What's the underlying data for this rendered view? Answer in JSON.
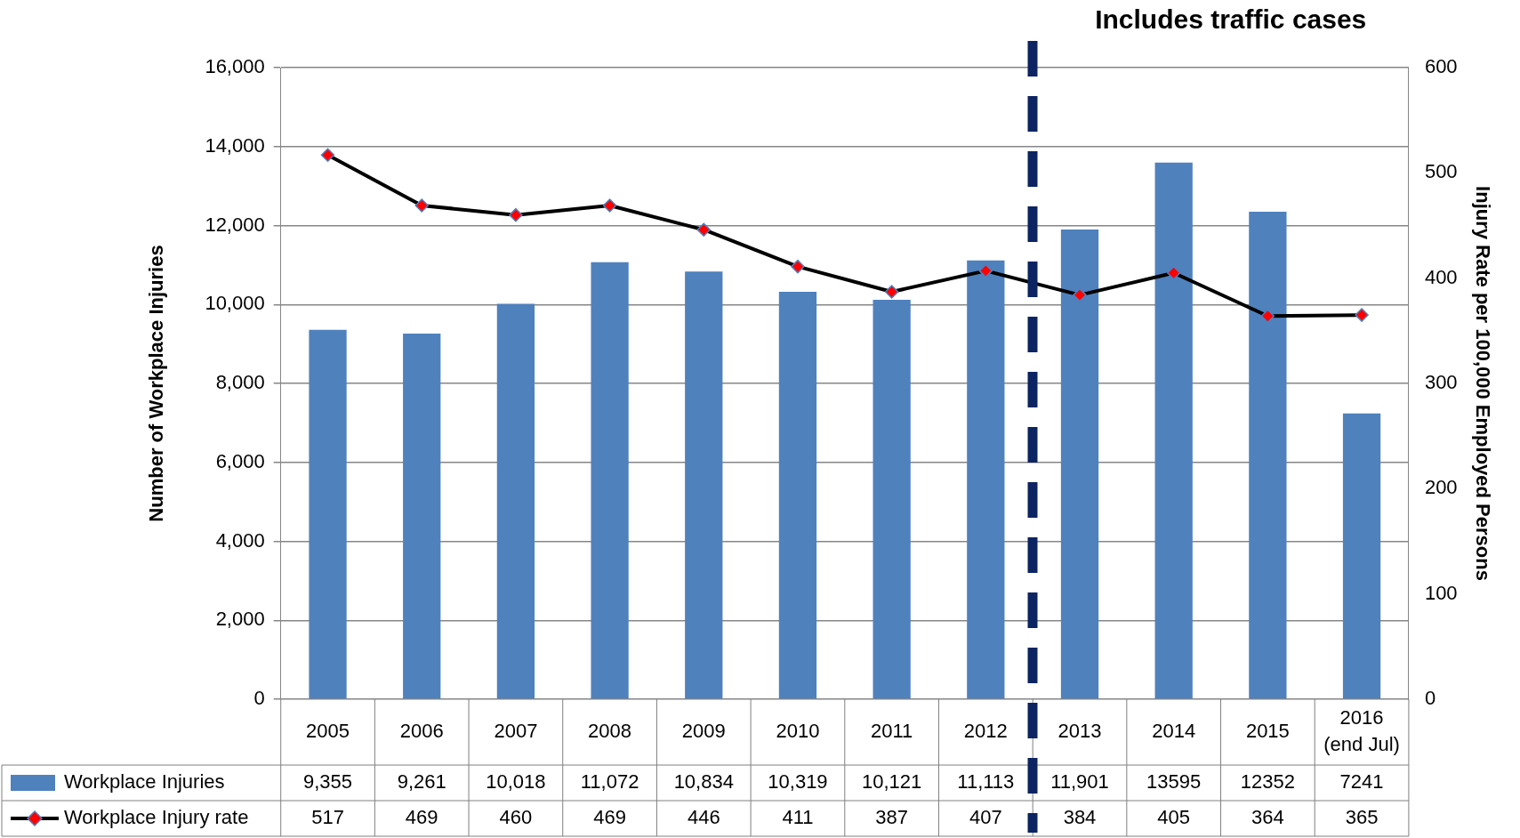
{
  "chart_data": {
    "type": "bar",
    "categories": [
      "2005",
      "2006",
      "2007",
      "2008",
      "2009",
      "2010",
      "2011",
      "2012",
      "2013",
      "2014",
      "2015",
      "2016 (end Jul)"
    ],
    "series": [
      {
        "name": "Workplace Injuries",
        "color": "#4f81bd",
        "values": [
          9355,
          9261,
          10018,
          11072,
          10834,
          10319,
          10121,
          11113,
          11901,
          13595,
          12352,
          7241
        ],
        "value_labels": [
          "9,355",
          "9,261",
          "10,018",
          "11,072",
          "10,834",
          "10,319",
          "10,121",
          "11,113",
          "11,901",
          "13595",
          "12352",
          "7241"
        ]
      },
      {
        "name": "Workplace Injury rate",
        "type": "line",
        "axis": "y2",
        "color": "#000000",
        "marker": "diamond",
        "values": [
          517,
          469,
          460,
          469,
          446,
          411,
          387,
          407,
          384,
          405,
          364,
          365
        ],
        "value_labels": [
          "517",
          "469",
          "460",
          "469",
          "446",
          "411",
          "387",
          "407",
          "384",
          "405",
          "364",
          "365"
        ]
      }
    ],
    "ylabel": "Number of Workplace Injuries",
    "y2label": "Injury Rate per 100,000 Employed Persons",
    "ylim": [
      0,
      16000
    ],
    "yticks": [
      {
        "value": 0,
        "label": "0"
      },
      {
        "value": 2000,
        "label": "2,000"
      },
      {
        "value": 4000,
        "label": "4,000"
      },
      {
        "value": 6000,
        "label": "6,000"
      },
      {
        "value": 8000,
        "label": "8,000"
      },
      {
        "value": 10000,
        "label": "10,000"
      },
      {
        "value": 12000,
        "label": "12,000"
      },
      {
        "value": 14000,
        "label": "14,000"
      },
      {
        "value": 16000,
        "label": "16,000"
      }
    ],
    "y2lim": [
      0,
      600
    ],
    "y2ticks": [
      0,
      100,
      200,
      300,
      400,
      500,
      600
    ],
    "annotations": [
      "Includes traffic cases"
    ],
    "grid": "y",
    "legend": "bottom left"
  }
}
